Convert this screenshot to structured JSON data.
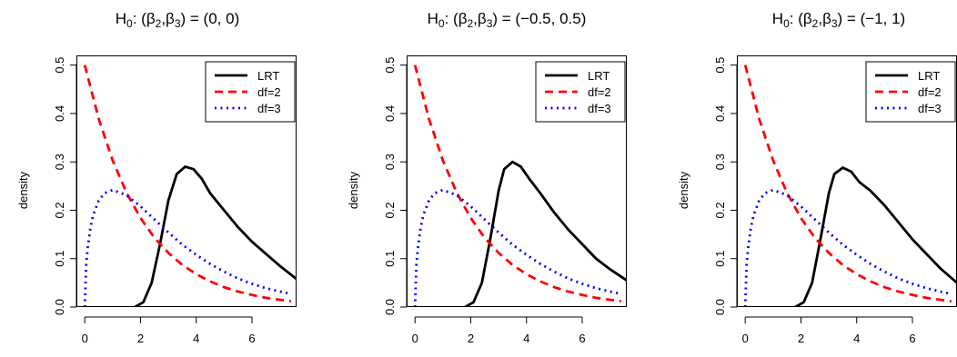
{
  "chart_data": [
    {
      "type": "line",
      "title": "H₀: (β₂,β₃) = (0, 0)",
      "xlabel": "",
      "ylabel": "density",
      "xlim": [
        -0.3,
        7.6
      ],
      "ylim": [
        0,
        0.52
      ],
      "xticks": [
        "0",
        "2",
        "4",
        "6"
      ],
      "yticks": [
        "0.0",
        "0.1",
        "0.2",
        "0.3",
        "0.4",
        "0.5"
      ],
      "legend_position": "top-right",
      "series": [
        {
          "name": "LRT",
          "color": "#000000",
          "dash": "solid",
          "x": [
            1.8,
            2.1,
            2.4,
            2.7,
            3.0,
            3.3,
            3.6,
            3.9,
            4.2,
            4.5,
            5.0,
            5.5,
            6.0,
            6.5,
            7.0,
            7.6
          ],
          "y": [
            0.0,
            0.01,
            0.05,
            0.13,
            0.22,
            0.275,
            0.29,
            0.285,
            0.265,
            0.235,
            0.2,
            0.165,
            0.135,
            0.11,
            0.085,
            0.058
          ]
        },
        {
          "name": "df=2",
          "color": "#ff0000",
          "dash": "dashed",
          "x": [
            0,
            0.5,
            1,
            1.5,
            2,
            2.5,
            3,
            3.5,
            4,
            4.5,
            5,
            5.5,
            6,
            6.5,
            7,
            7.4
          ],
          "y": [
            0.5,
            0.389,
            0.303,
            0.236,
            0.184,
            0.143,
            0.112,
            0.087,
            0.068,
            0.053,
            0.041,
            0.032,
            0.025,
            0.019,
            0.015,
            0.012
          ]
        },
        {
          "name": "df=3",
          "color": "#0000ff",
          "dash": "dotted",
          "x": [
            0,
            0.05,
            0.1,
            0.2,
            0.3,
            0.5,
            0.7,
            1,
            1.5,
            2,
            2.5,
            3,
            3.5,
            4,
            4.5,
            5,
            5.5,
            6,
            6.5,
            7,
            7.4
          ],
          "y": [
            0,
            0.087,
            0.12,
            0.163,
            0.19,
            0.22,
            0.235,
            0.242,
            0.231,
            0.208,
            0.181,
            0.154,
            0.129,
            0.108,
            0.089,
            0.073,
            0.059,
            0.048,
            0.039,
            0.032,
            0.027
          ]
        }
      ]
    },
    {
      "type": "line",
      "title": "H₀: (β₂,β₃) = (−0.5, 0.5)",
      "xlabel": "",
      "ylabel": "density",
      "xlim": [
        -0.3,
        7.6
      ],
      "ylim": [
        0,
        0.52
      ],
      "xticks": [
        "0",
        "2",
        "4",
        "6"
      ],
      "yticks": [
        "0.0",
        "0.1",
        "0.2",
        "0.3",
        "0.4",
        "0.5"
      ],
      "legend_position": "top-right",
      "series": [
        {
          "name": "LRT",
          "color": "#000000",
          "dash": "solid",
          "x": [
            1.8,
            2.1,
            2.4,
            2.7,
            3.0,
            3.2,
            3.5,
            3.8,
            4.1,
            4.5,
            5.0,
            5.5,
            6.0,
            6.5,
            7.0,
            7.6
          ],
          "y": [
            0.0,
            0.01,
            0.05,
            0.14,
            0.24,
            0.285,
            0.3,
            0.29,
            0.265,
            0.235,
            0.195,
            0.16,
            0.13,
            0.1,
            0.078,
            0.055
          ]
        },
        {
          "name": "df=2",
          "color": "#ff0000",
          "dash": "dashed",
          "x": [
            0,
            0.5,
            1,
            1.5,
            2,
            2.5,
            3,
            3.5,
            4,
            4.5,
            5,
            5.5,
            6,
            6.5,
            7,
            7.4
          ],
          "y": [
            0.5,
            0.389,
            0.303,
            0.236,
            0.184,
            0.143,
            0.112,
            0.087,
            0.068,
            0.053,
            0.041,
            0.032,
            0.025,
            0.019,
            0.015,
            0.012
          ]
        },
        {
          "name": "df=3",
          "color": "#0000ff",
          "dash": "dotted",
          "x": [
            0,
            0.05,
            0.1,
            0.2,
            0.3,
            0.5,
            0.7,
            1,
            1.5,
            2,
            2.5,
            3,
            3.5,
            4,
            4.5,
            5,
            5.5,
            6,
            6.5,
            7,
            7.4
          ],
          "y": [
            0,
            0.087,
            0.12,
            0.163,
            0.19,
            0.22,
            0.235,
            0.242,
            0.231,
            0.208,
            0.181,
            0.154,
            0.129,
            0.108,
            0.089,
            0.073,
            0.059,
            0.048,
            0.039,
            0.032,
            0.027
          ]
        }
      ]
    },
    {
      "type": "line",
      "title": "H₀: (β₂,β₃) = (−1, 1)",
      "xlabel": "",
      "ylabel": "density",
      "xlim": [
        -0.3,
        7.6
      ],
      "ylim": [
        0,
        0.52
      ],
      "xticks": [
        "0",
        "2",
        "4",
        "6"
      ],
      "yticks": [
        "0.0",
        "0.1",
        "0.2",
        "0.3",
        "0.4",
        "0.5"
      ],
      "legend_position": "top-right",
      "series": [
        {
          "name": "LRT",
          "color": "#000000",
          "dash": "solid",
          "x": [
            1.8,
            2.1,
            2.4,
            2.7,
            3.0,
            3.2,
            3.5,
            3.8,
            4.1,
            4.5,
            5.0,
            5.5,
            6.0,
            6.5,
            7.0,
            7.6
          ],
          "y": [
            0.0,
            0.01,
            0.05,
            0.14,
            0.235,
            0.275,
            0.288,
            0.28,
            0.258,
            0.24,
            0.21,
            0.175,
            0.14,
            0.11,
            0.08,
            0.05
          ]
        },
        {
          "name": "df=2",
          "color": "#ff0000",
          "dash": "dashed",
          "x": [
            0,
            0.5,
            1,
            1.5,
            2,
            2.5,
            3,
            3.5,
            4,
            4.5,
            5,
            5.5,
            6,
            6.5,
            7,
            7.4
          ],
          "y": [
            0.5,
            0.389,
            0.303,
            0.236,
            0.184,
            0.143,
            0.112,
            0.087,
            0.068,
            0.053,
            0.041,
            0.032,
            0.025,
            0.019,
            0.015,
            0.012
          ]
        },
        {
          "name": "df=3",
          "color": "#0000ff",
          "dash": "dotted",
          "x": [
            0,
            0.05,
            0.1,
            0.2,
            0.3,
            0.5,
            0.7,
            1,
            1.5,
            2,
            2.5,
            3,
            3.5,
            4,
            4.5,
            5,
            5.5,
            6,
            6.5,
            7,
            7.4
          ],
          "y": [
            0,
            0.087,
            0.12,
            0.163,
            0.19,
            0.22,
            0.235,
            0.242,
            0.231,
            0.208,
            0.181,
            0.154,
            0.129,
            0.108,
            0.089,
            0.073,
            0.059,
            0.048,
            0.039,
            0.032,
            0.027
          ]
        }
      ]
    }
  ]
}
